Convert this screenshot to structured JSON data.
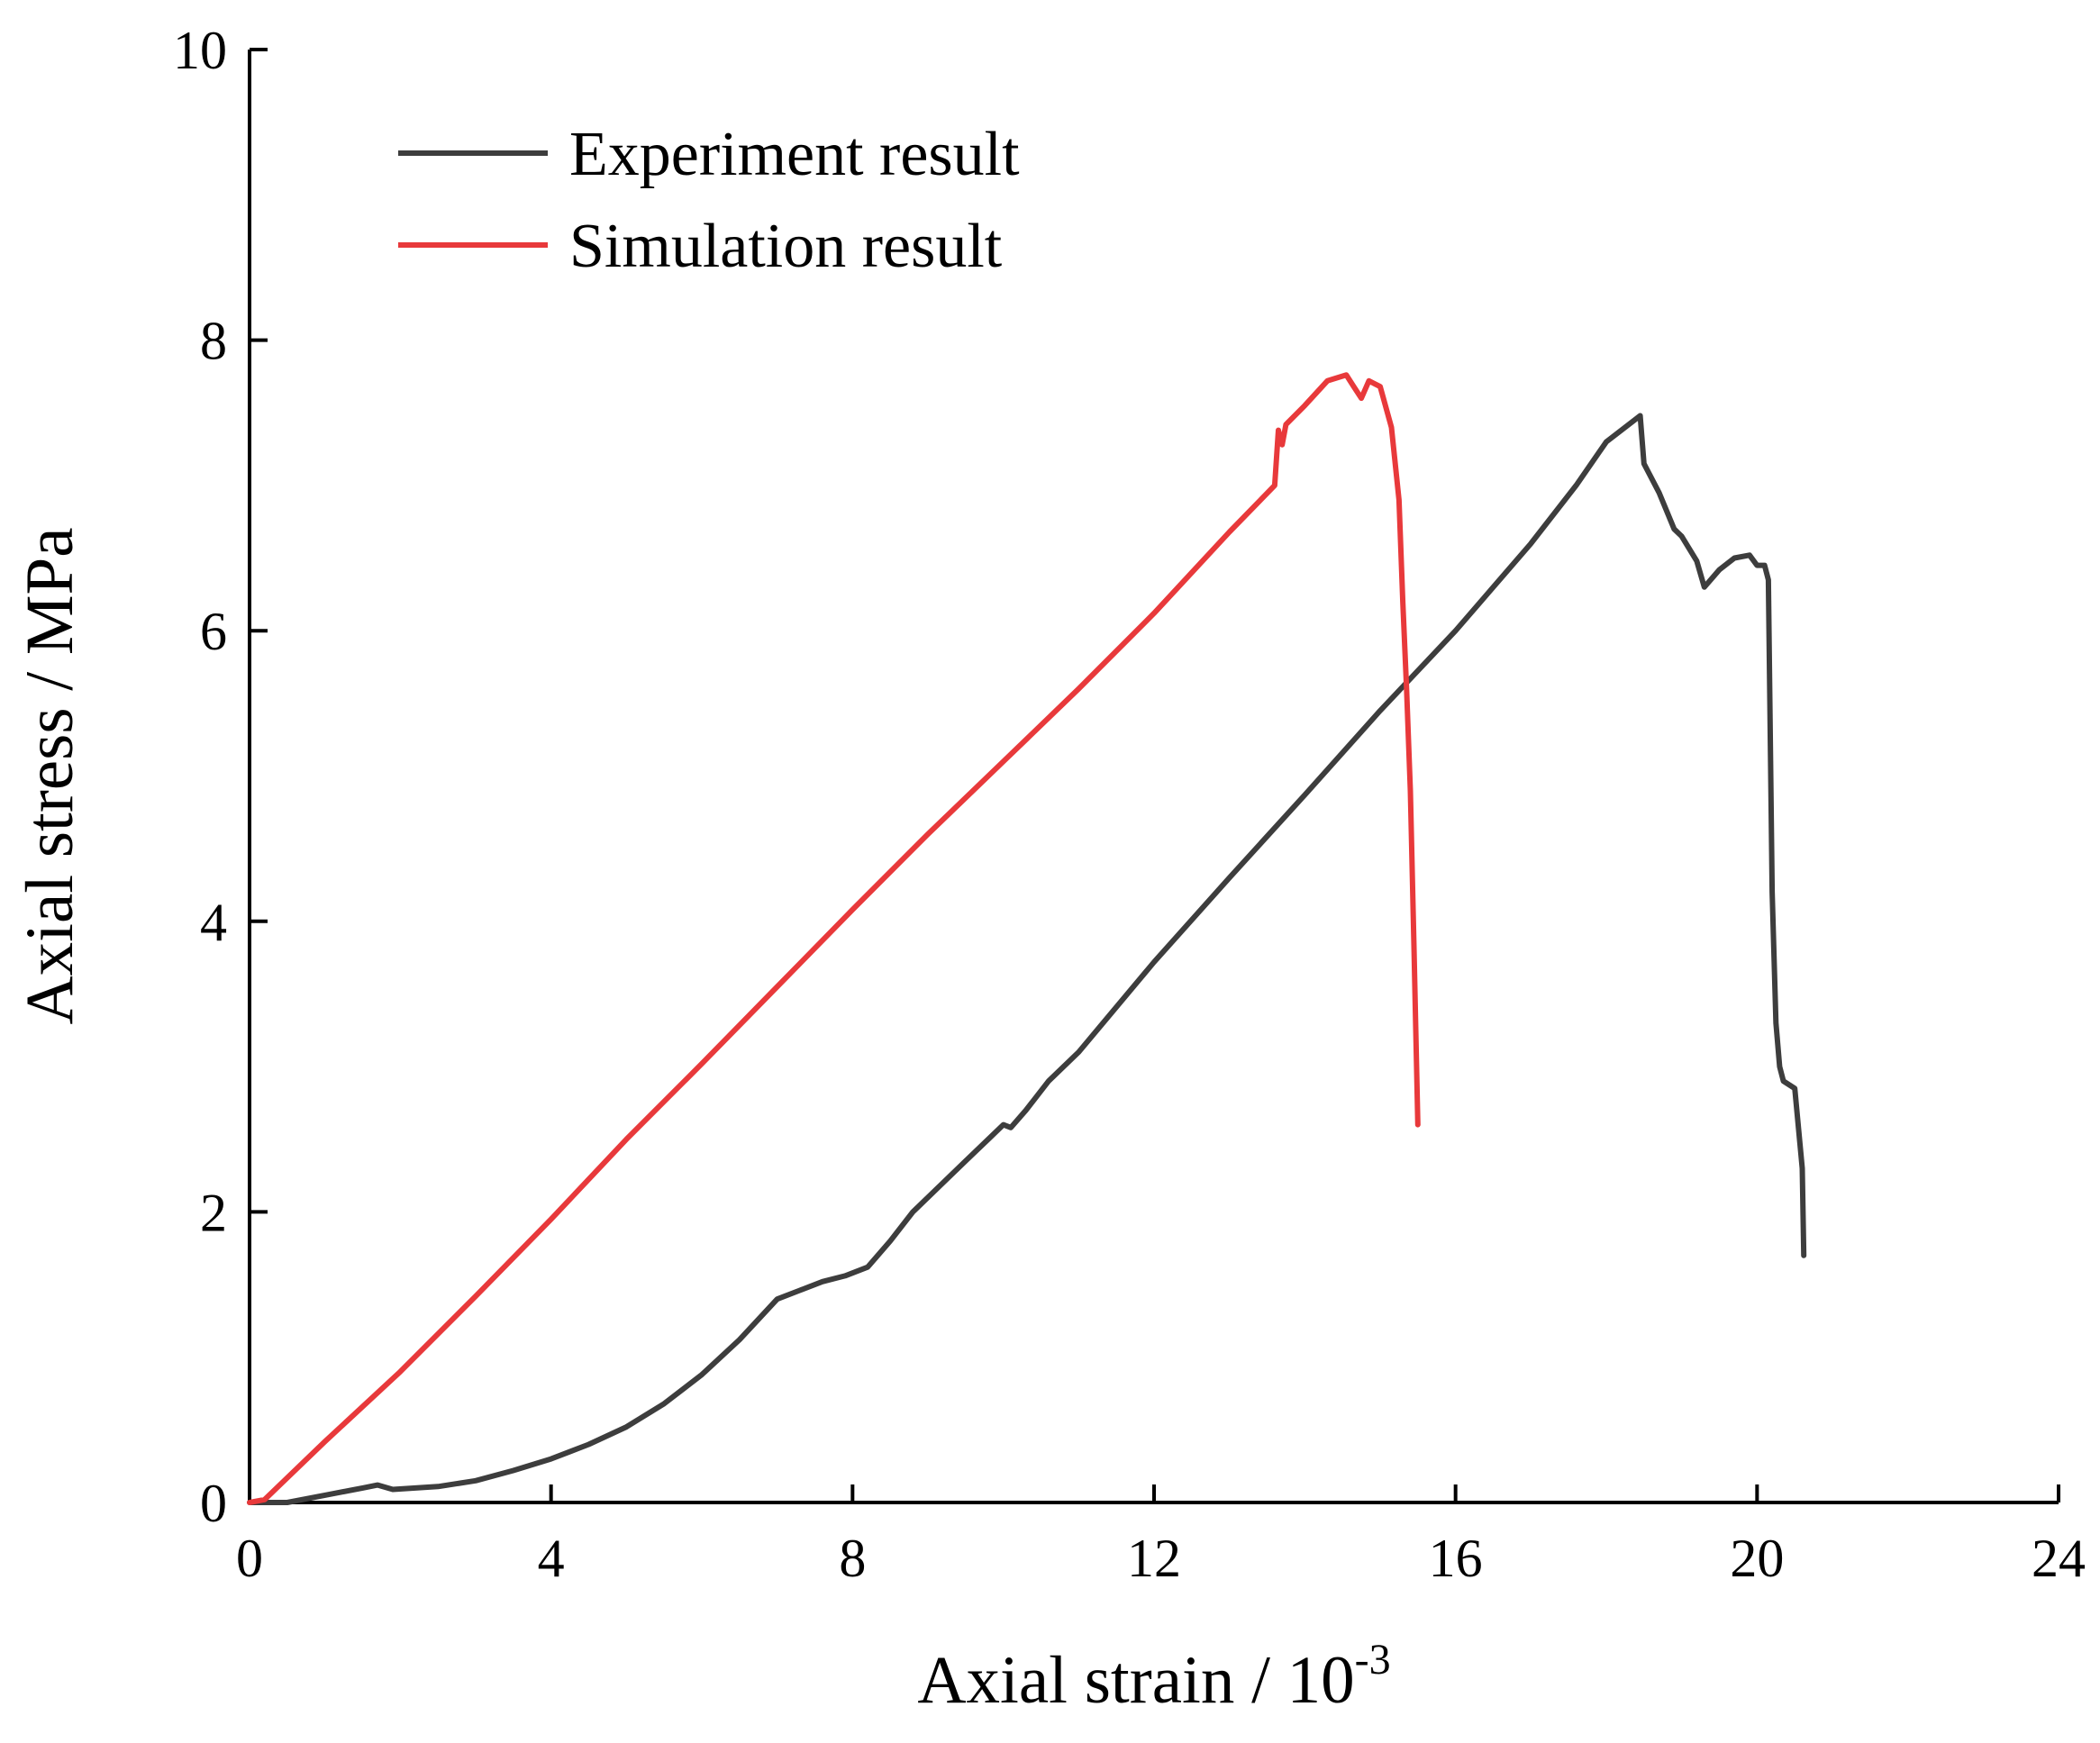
{
  "chart_data": {
    "type": "line",
    "title": "",
    "xlabel": "Axial strain / 10",
    "xlabel_exponent": "-3",
    "ylabel": "Axial stress / MPa",
    "xlim": [
      0,
      24
    ],
    "ylim": [
      0,
      10
    ],
    "xticks": [
      0,
      4,
      8,
      12,
      16,
      20,
      24
    ],
    "yticks": [
      0,
      2,
      4,
      6,
      8,
      10
    ],
    "xtick_labels": [
      "0",
      "4",
      "8",
      "12",
      "16",
      "20",
      "24"
    ],
    "ytick_labels": [
      "0",
      "2",
      "4",
      "6",
      "8",
      "10"
    ],
    "grid": false,
    "legend_position": "top-left",
    "series": [
      {
        "name": "Experiment result",
        "color": "#3d3d3d",
        "x": [
          0,
          0.5,
          1.0,
          1.5,
          1.7,
          1.9,
          2.2,
          2.5,
          3.0,
          3.5,
          4.0,
          4.5,
          5.0,
          5.5,
          6.0,
          6.5,
          7.0,
          7.3,
          7.6,
          7.9,
          8.2,
          8.5,
          8.8,
          9.2,
          9.5,
          9.8,
          10.0,
          10.1,
          10.3,
          10.6,
          11.0,
          12.0,
          13.0,
          14.0,
          15.0,
          16.0,
          17.0,
          17.6,
          18.0,
          18.25,
          18.45,
          18.5,
          18.7,
          18.9,
          19.0,
          19.2,
          19.3,
          19.5,
          19.7,
          19.9,
          20.0,
          20.1,
          20.15,
          20.2,
          20.25,
          20.3,
          20.35,
          20.5,
          20.6,
          20.62
        ],
        "values": [
          0,
          0,
          0.05,
          0.1,
          0.12,
          0.09,
          0.1,
          0.11,
          0.15,
          0.22,
          0.3,
          0.4,
          0.52,
          0.68,
          0.88,
          1.12,
          1.4,
          1.46,
          1.52,
          1.56,
          1.62,
          1.8,
          2.0,
          2.2,
          2.35,
          2.5,
          2.6,
          2.58,
          2.7,
          2.9,
          3.1,
          3.72,
          4.3,
          4.87,
          5.45,
          6.0,
          6.6,
          7.0,
          7.3,
          7.4,
          7.48,
          7.15,
          6.95,
          6.7,
          6.65,
          6.48,
          6.3,
          6.42,
          6.5,
          6.52,
          6.45,
          6.45,
          6.35,
          4.2,
          3.3,
          3.0,
          2.9,
          2.85,
          2.3,
          1.7
        ]
      },
      {
        "name": "Simulation result",
        "color": "#e8393b",
        "x": [
          0,
          0.2,
          1,
          2,
          3,
          4,
          5,
          6,
          7,
          8,
          9,
          10,
          11,
          12,
          13,
          13.6,
          13.65,
          13.7,
          13.75,
          14.0,
          14.3,
          14.55,
          14.65,
          14.75,
          14.85,
          15.0,
          15.15,
          15.25,
          15.3,
          15.35,
          15.4,
          15.45,
          15.5
        ],
        "values": [
          0,
          0.02,
          0.42,
          0.9,
          1.42,
          1.95,
          2.5,
          3.02,
          3.55,
          4.08,
          4.6,
          5.1,
          5.6,
          6.12,
          6.68,
          7.0,
          7.38,
          7.28,
          7.42,
          7.55,
          7.72,
          7.76,
          7.68,
          7.6,
          7.72,
          7.68,
          7.4,
          6.9,
          6.2,
          5.6,
          4.9,
          3.8,
          2.6
        ]
      }
    ]
  }
}
